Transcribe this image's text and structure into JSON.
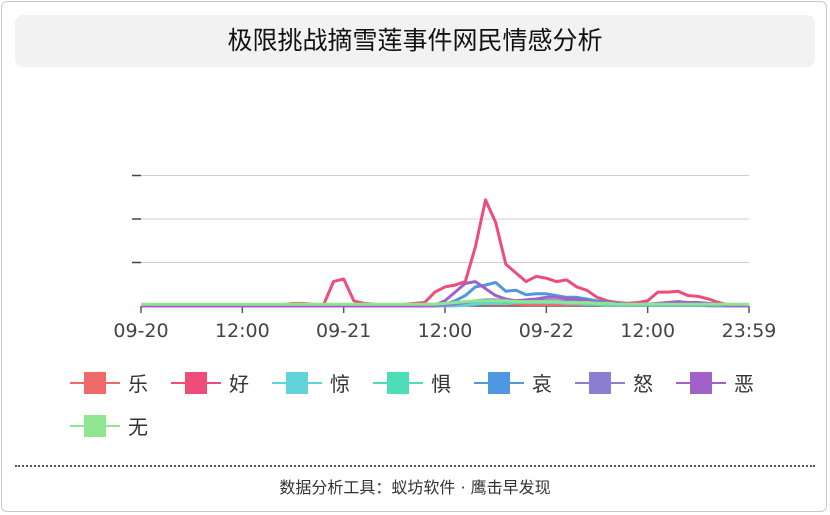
{
  "page": {
    "footer": "数据分析工具：蚁坊软件 · 鹰击早发现"
  },
  "chart_data": {
    "type": "line",
    "title": "极限挑战摘雪莲事件网民情感分析",
    "xlabel": "",
    "ylabel": "",
    "x_tick_labels": [
      "09-20",
      "12:00",
      "09-21",
      "12:00",
      "09-22",
      "12:00",
      "23:59"
    ],
    "x_count": 61,
    "ylim": [
      0,
      100
    ],
    "y_ticks": [
      0,
      25,
      50,
      75
    ],
    "grid": true,
    "legend_placement": "bottom",
    "series": [
      {
        "name": "乐",
        "color": "#f06a6a",
        "values": [
          0.8,
          0.8,
          0.8,
          0.8,
          0.8,
          0.8,
          0.8,
          0.8,
          0.8,
          0.8,
          0.8,
          0.8,
          0.8,
          0.8,
          0.8,
          1.5,
          1.5,
          1,
          0.8,
          0.8,
          0.8,
          0.8,
          0.8,
          0.8,
          0.8,
          0.8,
          0.8,
          1,
          1,
          1,
          1,
          1.5,
          1.5,
          1.5,
          1,
          1,
          1,
          1,
          0.8,
          0.8,
          0.8,
          0.8,
          0.8,
          0.8,
          0.8,
          0.8,
          0.8,
          0.8,
          1,
          1,
          1,
          0.8,
          0.8,
          0.8,
          0.8,
          0.8,
          0.8,
          0.8,
          0.8,
          0.8,
          0.8
        ]
      },
      {
        "name": "好",
        "color": "#ee4d7a",
        "values": [
          0.5,
          0.5,
          0.5,
          0.5,
          0.5,
          0.5,
          0.5,
          0.5,
          0.5,
          0.5,
          0.5,
          0.5,
          0.5,
          0.5,
          0.5,
          0.5,
          0.5,
          0.5,
          0.5,
          14,
          15.5,
          3,
          1.5,
          1,
          0.5,
          0.5,
          1,
          1.5,
          2,
          8,
          11,
          12,
          14,
          34,
          61,
          48,
          24,
          19,
          14,
          17,
          16,
          14,
          15,
          11,
          9,
          5,
          3,
          2,
          1.5,
          2,
          3,
          8,
          8,
          8.5,
          6,
          5.5,
          4,
          2,
          0.5,
          0.5,
          0.5
        ]
      },
      {
        "name": "惊",
        "color": "#62d2db",
        "values": [
          0,
          0,
          0,
          0,
          0,
          0,
          0,
          0,
          0,
          0,
          0,
          0,
          0,
          0,
          0,
          0,
          0,
          0,
          0,
          0,
          0,
          0,
          0,
          0,
          0,
          0,
          0,
          0,
          0,
          0,
          0,
          0,
          0.5,
          1,
          1.5,
          1.5,
          1.5,
          2,
          2,
          2,
          2,
          2,
          1.5,
          1.5,
          1,
          1,
          0.5,
          0.5,
          0.5,
          0.5,
          0.5,
          0.5,
          0.5,
          0.5,
          0.5,
          0.5,
          0.5,
          0.5,
          0.5,
          0,
          0
        ]
      },
      {
        "name": "惧",
        "color": "#4fdcb8",
        "values": [
          0,
          0,
          0,
          0,
          0,
          0,
          0,
          0,
          0,
          0,
          0,
          0,
          0,
          0,
          0,
          0,
          0,
          0,
          0,
          0,
          0,
          0,
          0,
          0,
          0,
          0,
          0,
          0,
          0,
          0.5,
          1,
          1.5,
          2,
          2.5,
          2.5,
          2.5,
          2,
          2,
          2,
          2.5,
          3,
          3,
          2.5,
          2,
          1.5,
          1,
          0.5,
          0.5,
          0.5,
          0.5,
          0.5,
          0.5,
          0.5,
          0.5,
          0.5,
          0.5,
          0,
          0,
          0,
          0,
          0
        ]
      },
      {
        "name": "哀",
        "color": "#4f97e0",
        "values": [
          0,
          0,
          0,
          0,
          0,
          0,
          0,
          0,
          0,
          0,
          0,
          0,
          0,
          0,
          0,
          0,
          0,
          0,
          0,
          0,
          0,
          0,
          0,
          0,
          0,
          0,
          0,
          0,
          0,
          0.5,
          1,
          3,
          6,
          11,
          12,
          13.5,
          8.5,
          9,
          6.5,
          7,
          7,
          6,
          5,
          5,
          4,
          3,
          2,
          1.5,
          1,
          1,
          0.8,
          0.8,
          0.8,
          0.8,
          0.8,
          0.8,
          0.5,
          0.5,
          0,
          0,
          0
        ]
      },
      {
        "name": "怒",
        "color": "#8a7fd0",
        "values": [
          0,
          0,
          0,
          0,
          0,
          0,
          0,
          0,
          0,
          0,
          0,
          0,
          0,
          0,
          0,
          0,
          0,
          0,
          0,
          0,
          0,
          0,
          0,
          0,
          0,
          0,
          0,
          0,
          0,
          0,
          0.5,
          1,
          2,
          3,
          3.5,
          3.5,
          3,
          2.5,
          3,
          3,
          3,
          3,
          3,
          3,
          2.5,
          2,
          1.5,
          1,
          1,
          1,
          1,
          1,
          1.5,
          1.5,
          1,
          1,
          0.5,
          0.5,
          0,
          0,
          0
        ]
      },
      {
        "name": "恶",
        "color": "#a062c8",
        "values": [
          0,
          0,
          0,
          0,
          0,
          0,
          0,
          0,
          0,
          0,
          0,
          0,
          0,
          0,
          0,
          0,
          0,
          0,
          0,
          0,
          0,
          0,
          0,
          0,
          0,
          0,
          0,
          0,
          0,
          0.5,
          3,
          8,
          13,
          14,
          10,
          6,
          4,
          3,
          3.5,
          4,
          5,
          5,
          4.5,
          4,
          3,
          2,
          1.5,
          1,
          1,
          1,
          1,
          1.5,
          2,
          2.5,
          2,
          2,
          1.5,
          1,
          0.5,
          0.5,
          0.5
        ]
      },
      {
        "name": "无",
        "color": "#90e690",
        "values": [
          1,
          1,
          1,
          1,
          1,
          1,
          1,
          1,
          1,
          1,
          1,
          1,
          1,
          1,
          1,
          1,
          1,
          1,
          1,
          1,
          1,
          1,
          1,
          1,
          1,
          1,
          1,
          1,
          1,
          1,
          1.5,
          2,
          2.5,
          3,
          3,
          3,
          3,
          2.5,
          2.5,
          2.5,
          2.5,
          2.5,
          2,
          2,
          2,
          1.5,
          1.5,
          1,
          1,
          1,
          1,
          1,
          1,
          1,
          1,
          1,
          1,
          1,
          1,
          1,
          1
        ]
      }
    ]
  }
}
